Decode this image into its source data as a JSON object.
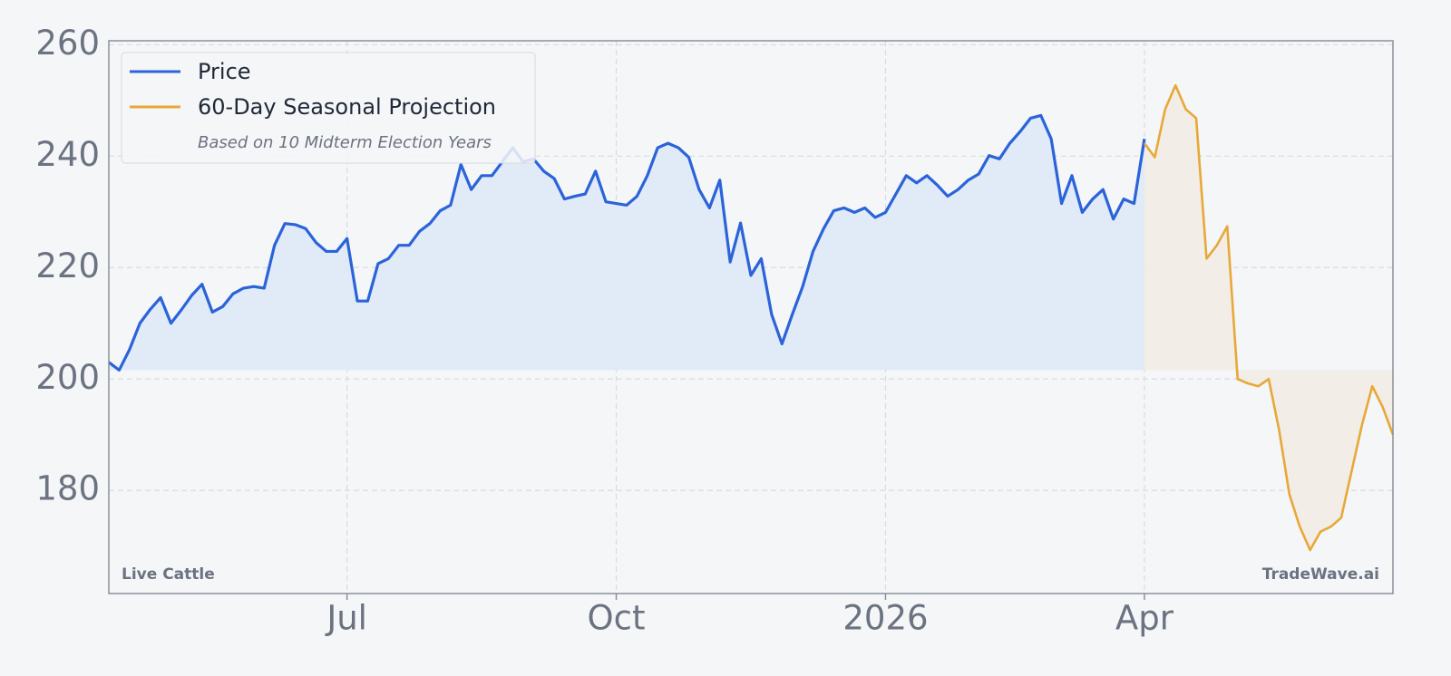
{
  "chart_data": {
    "type": "line",
    "title": "Live Cattle",
    "watermark": "TradeWave.ai",
    "legend_note": "Based on 10 Midterm Election Years",
    "legend": "upper left",
    "grid": true,
    "categories": [
      null,
      null,
      null,
      null,
      null,
      null,
      null,
      null,
      null,
      null,
      null,
      null,
      null,
      null,
      null,
      null,
      null,
      null,
      null,
      null,
      null,
      null,
      null,
      "Jul",
      null,
      null,
      null,
      null,
      null,
      null,
      null,
      null,
      null,
      null,
      null,
      null,
      null,
      null,
      null,
      null,
      null,
      null,
      null,
      null,
      null,
      null,
      null,
      null,
      null,
      "Oct",
      null,
      null,
      null,
      null,
      null,
      null,
      null,
      null,
      null,
      null,
      null,
      null,
      null,
      null,
      null,
      null,
      null,
      null,
      null,
      null,
      null,
      null,
      null,
      null,
      null,
      "2026",
      null,
      null,
      null,
      null,
      null,
      null,
      null,
      null,
      null,
      null,
      null,
      null,
      null,
      null,
      null,
      null,
      null,
      null,
      null,
      null,
      null,
      null,
      null,
      null,
      "Apr",
      null,
      null,
      null,
      null,
      null,
      null,
      null,
      null,
      null,
      null,
      null,
      null,
      null,
      null,
      null,
      null,
      null,
      null,
      null,
      null,
      null,
      null,
      null,
      null
    ],
    "series": [
      {
        "name": "Price",
        "color": "#2b63d9",
        "fill": "#dfeaf6",
        "values": [
          203,
          201.6,
          205.3,
          210,
          212.5,
          214.6,
          210,
          212.4,
          215,
          217,
          212,
          213,
          215.3,
          216.3,
          216.6,
          216.3,
          224,
          227.9,
          227.7,
          227,
          224.5,
          222.9,
          222.9,
          225.2,
          214,
          214,
          220.7,
          221.6,
          224,
          224,
          226.5,
          227.9,
          230.2,
          231.2,
          238.5,
          234,
          236.5,
          236.5,
          239,
          241.5,
          239,
          239.5,
          237.3,
          236,
          232.3,
          232.8,
          233.2,
          237.3,
          231.8,
          231.5,
          231.2,
          232.8,
          236.5,
          241.5,
          242.3,
          241.5,
          239.8,
          234,
          230.7,
          235.7,
          221,
          228,
          218.6,
          221.6,
          211.6,
          206.3,
          211.6,
          216.6,
          222.9,
          226.9,
          230.2,
          230.7,
          229.9,
          230.7,
          229,
          229.9,
          233.2,
          236.5,
          235.2,
          236.5,
          234.8,
          232.8,
          234,
          235.7,
          236.8,
          240.1,
          239.5,
          242.3,
          244.4,
          246.8,
          247.3,
          243.1,
          231.5,
          236.5,
          229.9,
          232.3,
          234,
          228.7,
          232.3,
          231.5,
          243.1,
          null,
          null,
          null,
          null,
          null,
          null,
          null,
          null,
          null,
          null,
          null,
          null,
          null,
          null,
          null,
          null,
          null,
          null,
          null,
          null,
          null,
          null,
          null,
          null
        ]
      },
      {
        "name": "60-Day Seasonal Projection",
        "color": "#e8a838",
        "fill": "#f2ece3",
        "values": [
          null,
          null,
          null,
          null,
          null,
          null,
          null,
          null,
          null,
          null,
          null,
          null,
          null,
          null,
          null,
          null,
          null,
          null,
          null,
          null,
          null,
          null,
          null,
          null,
          null,
          null,
          null,
          null,
          null,
          null,
          null,
          null,
          null,
          null,
          null,
          null,
          null,
          null,
          null,
          null,
          null,
          null,
          null,
          null,
          null,
          null,
          null,
          null,
          null,
          null,
          null,
          null,
          null,
          null,
          null,
          null,
          null,
          null,
          null,
          null,
          null,
          null,
          null,
          null,
          null,
          null,
          null,
          null,
          null,
          null,
          null,
          null,
          null,
          null,
          null,
          null,
          null,
          null,
          null,
          null,
          null,
          null,
          null,
          null,
          null,
          null,
          null,
          null,
          null,
          null,
          null,
          null,
          null,
          null,
          null,
          null,
          null,
          null,
          null,
          null,
          242.3,
          239.8,
          248.4,
          252.7,
          248.4,
          246.8,
          221.6,
          224,
          227.4,
          200,
          199.2,
          198.7,
          200,
          190.9,
          179.3,
          173.5,
          169.3,
          172.6,
          173.5,
          175.1,
          183.4,
          191.7,
          198.7,
          195,
          190
        ]
      }
    ],
    "ylim": [
      161.5,
      260.7
    ],
    "yticks": [
      180,
      200,
      220,
      240,
      260
    ]
  }
}
